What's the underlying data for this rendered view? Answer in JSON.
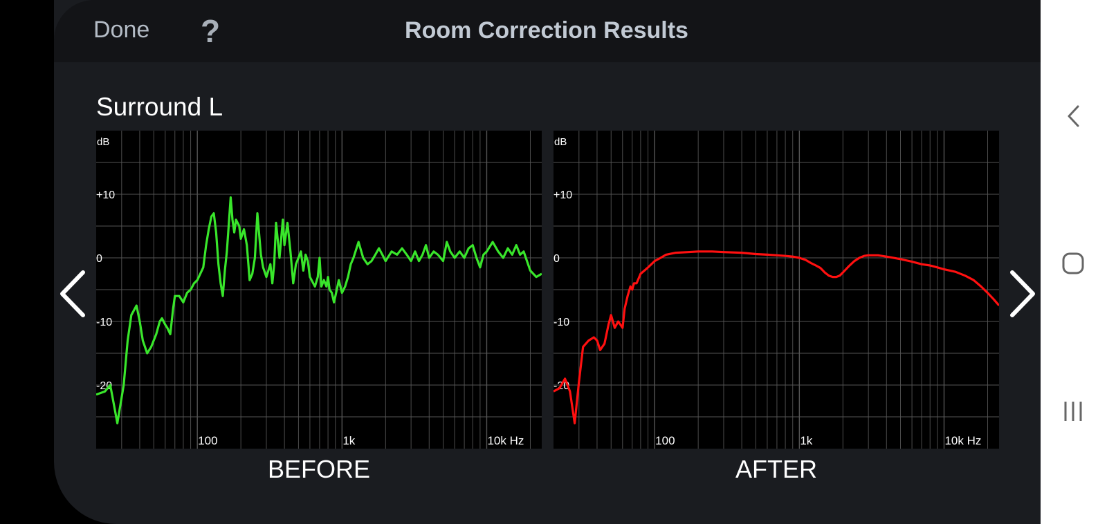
{
  "header": {
    "done_label": "Done",
    "help_label": "?",
    "title": "Room Correction Results"
  },
  "channel": {
    "name": "Surround L"
  },
  "navigation": {
    "prev_icon": "chevron-left-icon",
    "next_icon": "chevron-right-icon"
  },
  "system_bar": {
    "back_icon": "back-icon",
    "home_icon": "home-icon",
    "recents_icon": "recents-icon"
  },
  "colors": {
    "before_line": "#39e62b",
    "after_line": "#ff1010",
    "grid": "#555555",
    "panel": "#1a1c20"
  },
  "chart_data": [
    {
      "type": "line",
      "title": "",
      "caption": "BEFORE",
      "ylabel": "dB",
      "xlabel": "",
      "x_scale": "log",
      "xlim": [
        20,
        24000
      ],
      "ylim": [
        -30,
        20
      ],
      "y_ticks": [
        {
          "value": 10,
          "label": "+10"
        },
        {
          "value": 0,
          "label": "0"
        },
        {
          "value": -10,
          "label": "-10"
        },
        {
          "value": -20,
          "label": "-20"
        }
      ],
      "x_ticks": [
        {
          "value": 100,
          "label": "100"
        },
        {
          "value": 1000,
          "label": "1k"
        },
        {
          "value": 10000,
          "label": "10k Hz"
        }
      ],
      "grid": true,
      "series": [
        {
          "color": "#39e62b",
          "x": [
            20,
            23,
            25,
            26,
            28,
            31,
            33,
            35,
            38,
            40,
            42,
            45,
            48,
            52,
            55,
            57,
            60,
            62,
            65,
            68,
            70,
            75,
            80,
            85,
            90,
            95,
            100,
            110,
            115,
            120,
            125,
            130,
            135,
            140,
            145,
            150,
            155,
            160,
            170,
            175,
            180,
            185,
            195,
            200,
            210,
            220,
            230,
            240,
            250,
            260,
            275,
            285,
            300,
            320,
            330,
            340,
            350,
            370,
            390,
            400,
            420,
            440,
            460,
            480,
            500,
            520,
            540,
            560,
            580,
            600,
            650,
            680,
            700,
            720,
            750,
            780,
            800,
            820,
            850,
            880,
            900,
            950,
            1000,
            1050,
            1100,
            1150,
            1200,
            1300,
            1400,
            1500,
            1600,
            1700,
            1800,
            1900,
            2000,
            2200,
            2400,
            2600,
            2800,
            3000,
            3200,
            3400,
            3600,
            3800,
            4000,
            4300,
            4600,
            5000,
            5300,
            5600,
            6000,
            6500,
            7000,
            7500,
            8000,
            8500,
            9000,
            9500,
            10000,
            11000,
            12000,
            13000,
            14000,
            15000,
            16000,
            17000,
            18000,
            20000,
            22000,
            24000
          ],
          "y": [
            -21.5,
            -21,
            -20,
            -22,
            -26,
            -20,
            -13,
            -9,
            -7.5,
            -10,
            -13,
            -15,
            -14,
            -12,
            -10,
            -9.5,
            -10.5,
            -11,
            -12,
            -8,
            -6,
            -6,
            -7,
            -5.5,
            -5,
            -4,
            -3.5,
            -1.5,
            2,
            4.5,
            6.5,
            7,
            4,
            -1,
            -4,
            -6,
            -2,
            1,
            9.5,
            6,
            4,
            6,
            5,
            3,
            4.5,
            2,
            -3.5,
            -2.5,
            0,
            7,
            0.5,
            -1.5,
            -3,
            -1,
            -4,
            -1,
            5.5,
            0,
            6,
            2,
            5.5,
            1,
            -4,
            -1,
            0,
            1,
            -2,
            0.5,
            -0.5,
            -3,
            -4.5,
            -3,
            0,
            -4.5,
            -3.5,
            -4.5,
            -3,
            -5,
            -5.5,
            -7,
            -6,
            -3.5,
            -5.5,
            -4.5,
            -3,
            -1,
            0,
            2.5,
            0,
            -1,
            -0.5,
            0.5,
            1.5,
            0.5,
            -0.5,
            1,
            0.5,
            1.5,
            0.5,
            -0.5,
            1,
            -0.5,
            0.5,
            2,
            0,
            1,
            0.5,
            -0.5,
            2.5,
            1,
            0,
            1,
            0,
            1.5,
            2,
            0,
            -1.5,
            0.5,
            1,
            2.5,
            1,
            0,
            1.5,
            0.5,
            2,
            0.5,
            1,
            -2,
            -3,
            -2.5
          ]
        }
      ]
    },
    {
      "type": "line",
      "title": "",
      "caption": "AFTER",
      "ylabel": "dB",
      "xlabel": "",
      "x_scale": "log",
      "xlim": [
        20,
        24000
      ],
      "ylim": [
        -30,
        20
      ],
      "y_ticks": [
        {
          "value": 10,
          "label": "+10"
        },
        {
          "value": 0,
          "label": "0"
        },
        {
          "value": -10,
          "label": "-10"
        },
        {
          "value": -20,
          "label": "-20"
        }
      ],
      "x_ticks": [
        {
          "value": 100,
          "label": "100"
        },
        {
          "value": 1000,
          "label": "1k"
        },
        {
          "value": 10000,
          "label": "10k Hz"
        }
      ],
      "grid": true,
      "series": [
        {
          "color": "#ff1010",
          "x": [
            20,
            22,
            24,
            26,
            28,
            30,
            32,
            35,
            38,
            40,
            42,
            45,
            48,
            50,
            53,
            56,
            60,
            62,
            65,
            68,
            70,
            72,
            75,
            80,
            85,
            90,
            95,
            100,
            110,
            120,
            140,
            170,
            200,
            250,
            300,
            400,
            500,
            600,
            700,
            800,
            900,
            1000,
            1100,
            1200,
            1300,
            1400,
            1500,
            1600,
            1700,
            1800,
            1900,
            2000,
            2200,
            2400,
            2600,
            2800,
            3000,
            3500,
            4000,
            5000,
            6000,
            7000,
            8000,
            9000,
            10000,
            12000,
            14000,
            16000,
            18000,
            20000,
            22000,
            24000
          ],
          "y": [
            -21,
            -20.5,
            -19,
            -21,
            -26,
            -19.5,
            -14,
            -13,
            -12.5,
            -13,
            -14.5,
            -13.5,
            -10.5,
            -9,
            -11,
            -10,
            -11,
            -8,
            -6,
            -4.5,
            -5,
            -4,
            -4,
            -2.5,
            -2,
            -1.5,
            -1,
            -0.5,
            0,
            0.5,
            0.8,
            0.9,
            1,
            1,
            0.9,
            0.8,
            0.6,
            0.5,
            0.4,
            0.3,
            0.2,
            0,
            -0.3,
            -0.8,
            -1.2,
            -1.6,
            -2.3,
            -2.8,
            -3,
            -3,
            -2.8,
            -2.3,
            -1.3,
            -0.5,
            0,
            0.3,
            0.4,
            0.4,
            0.2,
            -0.2,
            -0.6,
            -1.0,
            -1.2,
            -1.5,
            -1.8,
            -2.2,
            -2.8,
            -3.5,
            -4.5,
            -5.5,
            -6.5,
            -7.5
          ]
        }
      ]
    }
  ]
}
